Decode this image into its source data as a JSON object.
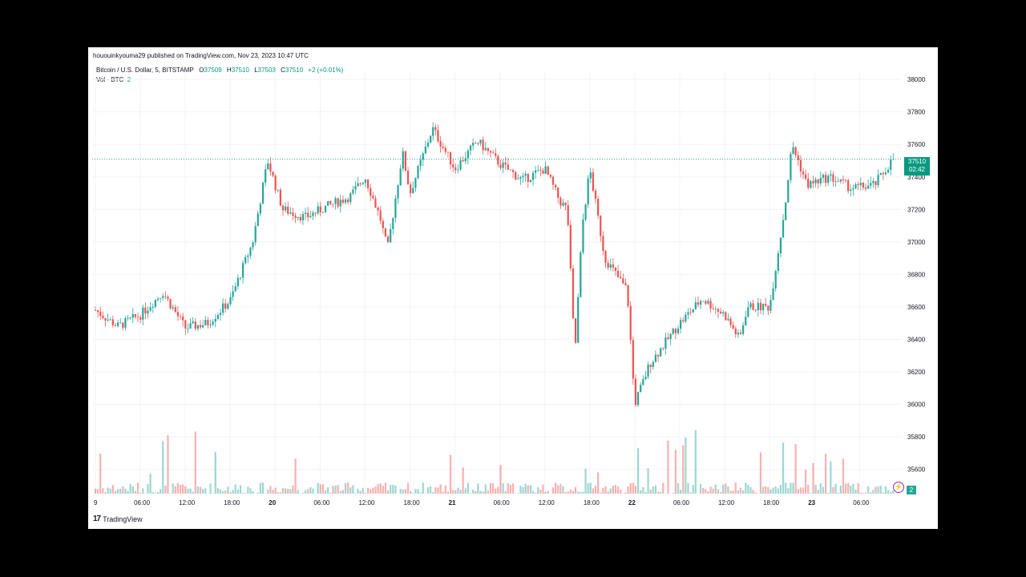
{
  "header": {
    "published": "hououinkyouma29 published on TradingView.com, Nov 23, 2023 10:47 UTC"
  },
  "legend": {
    "symbol": "Bitcoin / U.S. Dollar, 5, BITSTAMP",
    "o_label": "O",
    "o_value": "37509",
    "h_label": "H",
    "h_value": "37510",
    "l_label": "L",
    "l_value": "37503",
    "c_label": "C",
    "c_value": "37510",
    "change": "+2 (+0.01%)",
    "vol_label": "Vol · BTC",
    "vol_value": "2"
  },
  "price_badge": {
    "price": "37510",
    "countdown": "02:42"
  },
  "vol_badge": {
    "value": "2"
  },
  "footer": {
    "brand": "TradingView",
    "mark": "17"
  },
  "colors": {
    "up": "#26a69a",
    "down": "#ef5350",
    "accent": "#089981",
    "grid": "#f0f3fa"
  },
  "chart_data": {
    "type": "line",
    "subtype": "candlestick",
    "y_ticks": [
      35600,
      35800,
      36000,
      36200,
      36400,
      36600,
      36800,
      37000,
      37200,
      37400,
      37600,
      37800,
      38000
    ],
    "ylim": [
      35450,
      38050
    ],
    "x_ticks": [
      "9",
      "06:00",
      "12:00",
      "18:00",
      "20",
      "06:00",
      "12:00",
      "18:00",
      "21",
      "06:00",
      "12:00",
      "18:00",
      "22",
      "06:00",
      "12:00",
      "18:00",
      "23",
      "06:00"
    ],
    "last_price": 37510,
    "series": [
      {
        "x": [
          "19 00:00",
          "19 03:00",
          "19 06:00",
          "19 09:00",
          "19 12:00",
          "19 15:00",
          "19 18:00",
          "19 21:00",
          "19 23:00",
          "20 01:00",
          "20 04:00",
          "20 07:00",
          "20 10:00",
          "20 12:00",
          "20 14:00",
          "20 15:00",
          "20 17:00",
          "20 18:00",
          "20 21:00",
          "21 00:00",
          "21 03:00",
          "21 06:00",
          "21 09:00",
          "21 12:00",
          "21 14:00",
          "21 15:00",
          "21 16:00",
          "21 17:00",
          "21 18:00",
          "21 20:00",
          "21 23:00",
          "22 00:00",
          "22 02:00",
          "22 06:00",
          "22 09:00",
          "22 12:00",
          "22 14:00",
          "22 15:00",
          "22 18:00",
          "22 20:00",
          "22 21:00",
          "22 23:00",
          "23 02:00",
          "23 05:00",
          "23 08:00",
          "23 10:30"
        ],
        "values": [
          36580,
          36480,
          36550,
          36690,
          36470,
          36500,
          36640,
          37000,
          37500,
          37200,
          37150,
          37220,
          37280,
          37400,
          37150,
          36950,
          37550,
          37300,
          37700,
          37450,
          37620,
          37480,
          37380,
          37450,
          37250,
          37200,
          36300,
          37100,
          37450,
          36900,
          36700,
          36000,
          36250,
          36500,
          36650,
          36550,
          36400,
          36600,
          36600,
          37200,
          37600,
          37350,
          37400,
          37330,
          37350,
          37510
        ]
      }
    ]
  }
}
